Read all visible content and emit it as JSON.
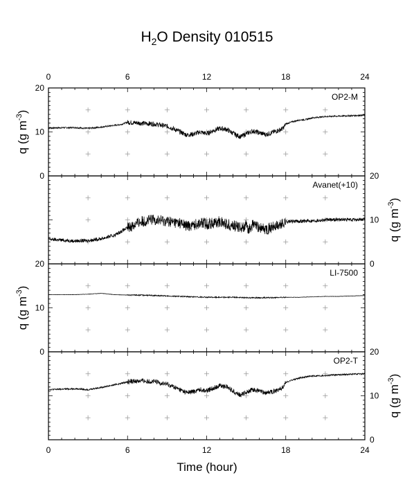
{
  "chart_data": {
    "type": "line",
    "title": {
      "main": "H",
      "sub": "2",
      "rest": "O Density 010515"
    },
    "xlabel": "Time (hour)",
    "xlim": [
      0,
      24
    ],
    "xticks": [
      0,
      6,
      12,
      18,
      24
    ],
    "xtick_labels": [
      "0",
      "6",
      "12",
      "18",
      "24"
    ],
    "ylim": [
      0,
      20
    ],
    "yticks": [
      0,
      10,
      20
    ],
    "ylabel": {
      "prefix": "q (g m",
      "sup": "-3",
      "suffix": ")"
    },
    "grid": "crosses",
    "panels": [
      {
        "label": "OP2-M",
        "axis_side": "left",
        "tick_labels": [
          "0",
          "10",
          "20"
        ],
        "series": [
          {
            "name": "OP2-M",
            "noise": 0.35,
            "x": [
              0,
              2,
              3,
              4,
              5,
              5.5,
              6,
              7,
              8,
              9,
              9.5,
              10,
              10.5,
              11,
              11.5,
              12,
              12.5,
              13,
              13.5,
              14,
              14.3,
              14.6,
              15,
              15.5,
              16,
              16.5,
              17,
              17.5,
              17.8,
              18,
              18.5,
              19,
              19.5,
              20,
              21,
              22,
              23,
              24
            ],
            "y": [
              10.9,
              11.0,
              10.8,
              11.1,
              11.5,
              11.7,
              12.2,
              12.0,
              11.8,
              11.3,
              10.7,
              10.0,
              9.3,
              9.5,
              10.0,
              9.6,
              10.3,
              10.8,
              10.6,
              9.7,
              9.2,
              8.9,
              9.6,
              10.2,
              9.8,
              9.4,
              9.9,
              10.4,
              10.8,
              11.8,
              12.3,
              12.7,
              12.8,
              13.2,
              13.5,
              13.6,
              13.7,
              13.8
            ]
          }
        ]
      },
      {
        "label": "Avanet(+10)",
        "axis_side": "right",
        "tick_labels": [
          "0",
          "10",
          "20"
        ],
        "series": [
          {
            "name": "Avanet(+10)",
            "noise": 0.8,
            "x": [
              0,
              2,
              3,
              4,
              5,
              6,
              7,
              8,
              9,
              10,
              10.5,
              11,
              11.5,
              12,
              12.5,
              13,
              13.5,
              14,
              14.5,
              15,
              15.2,
              15.5,
              16,
              16.5,
              17,
              17.5,
              17.8,
              18,
              19,
              20,
              21,
              22,
              23,
              24
            ],
            "y": [
              5.6,
              5.2,
              5.3,
              5.7,
              6.5,
              8.2,
              9.6,
              10.1,
              9.7,
              9.3,
              8.6,
              8.8,
              9.4,
              9.1,
              9.3,
              9.6,
              9.1,
              8.7,
              8.3,
              8.6,
              7.8,
              8.9,
              8.2,
              7.9,
              8.3,
              8.7,
              9.2,
              9.6,
              9.7,
              9.8,
              10.0,
              10.1,
              10.0,
              10.1
            ]
          }
        ]
      },
      {
        "label": "LI-7500",
        "axis_side": "left",
        "tick_labels": [
          "0",
          "10",
          "20"
        ],
        "series": [
          {
            "name": "LI-7500",
            "noise": 0.08,
            "x": [
              0,
              2,
              3,
              4,
              5,
              6,
              7,
              8,
              9,
              10,
              11,
              12,
              13,
              14,
              15,
              16,
              17,
              18,
              19,
              20,
              21,
              22,
              23,
              24
            ],
            "y": [
              13.0,
              13.0,
              13.1,
              13.3,
              13.0,
              12.9,
              12.9,
              12.8,
              12.7,
              12.6,
              12.5,
              12.4,
              12.4,
              12.4,
              12.3,
              12.3,
              12.3,
              12.4,
              12.4,
              12.5,
              12.6,
              12.6,
              12.7,
              12.8
            ]
          }
        ]
      },
      {
        "label": "OP2-T",
        "axis_side": "right",
        "tick_labels": [
          "0",
          "10",
          "20"
        ],
        "series": [
          {
            "name": "OP2-T",
            "noise": 0.35,
            "x": [
              0,
              2,
              3,
              4,
              5,
              5.5,
              6,
              7,
              8,
              9,
              9.5,
              10,
              10.5,
              11,
              11.5,
              12,
              12.5,
              13,
              13.5,
              14,
              14.3,
              14.6,
              15,
              15.5,
              16,
              16.5,
              17,
              17.5,
              17.8,
              18,
              18.5,
              19,
              19.5,
              20,
              21,
              22,
              23,
              24
            ],
            "y": [
              11.4,
              11.6,
              11.4,
              11.9,
              12.5,
              12.8,
              13.2,
              13.4,
              13.2,
              12.6,
              12.0,
              11.3,
              10.7,
              10.9,
              11.4,
              11.1,
              11.8,
              12.3,
              12.1,
              11.1,
              10.5,
              10.2,
              10.8,
              11.4,
              11.0,
              10.6,
              11.0,
              11.5,
              11.9,
              13.0,
              13.6,
              14.0,
              14.3,
              14.5,
              14.6,
              14.8,
              14.9,
              15.0
            ]
          }
        ]
      }
    ]
  }
}
